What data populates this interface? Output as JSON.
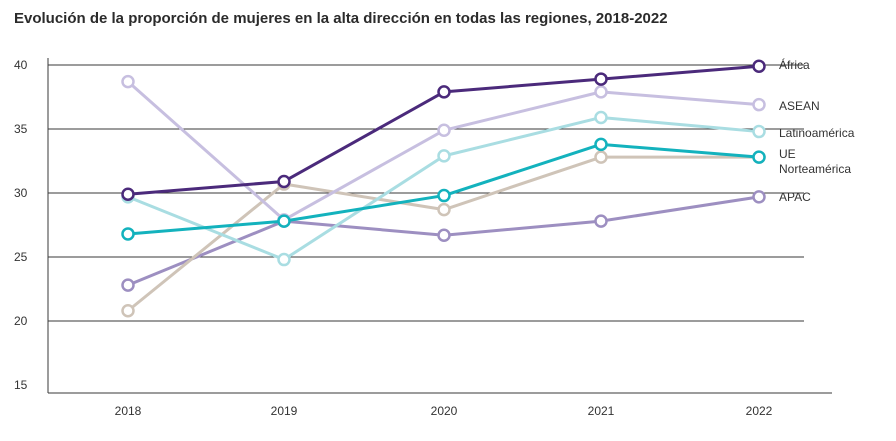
{
  "chart_data": {
    "type": "line",
    "title": "Evolución de la proporción de mujeres en la alta dirección en todas las regiones, 2018-2022",
    "xlabel": "",
    "ylabel": "",
    "categories": [
      "2018",
      "2019",
      "2020",
      "2021",
      "2022"
    ],
    "ylim": [
      15,
      40
    ],
    "yticks": [
      15,
      20,
      25,
      30,
      35,
      40
    ],
    "gridlines": [
      20,
      25,
      30,
      35,
      40
    ],
    "legend_placement": "right (labels at line ends)",
    "series": [
      {
        "name": "África",
        "color": "#4b2a7b",
        "values": [
          29.9,
          30.9,
          37.9,
          38.9,
          39.9
        ]
      },
      {
        "name": "ASEAN",
        "color": "#c7bfe0",
        "values": [
          38.7,
          27.9,
          34.9,
          37.9,
          36.9
        ]
      },
      {
        "name": "Latinoamérica",
        "color": "#a9dde2",
        "values": [
          29.7,
          24.8,
          32.9,
          35.9,
          34.8
        ]
      },
      {
        "name": "UE",
        "color": "#13b2bd",
        "values": [
          26.8,
          27.8,
          29.8,
          33.8,
          32.8
        ]
      },
      {
        "name": "Norteamérica",
        "color": "#cfc4b8",
        "values": [
          20.8,
          30.7,
          28.7,
          32.8,
          32.8
        ]
      },
      {
        "name": "APAC",
        "color": "#9d8fc1",
        "values": [
          22.8,
          27.8,
          26.7,
          27.8,
          29.7
        ]
      }
    ]
  }
}
